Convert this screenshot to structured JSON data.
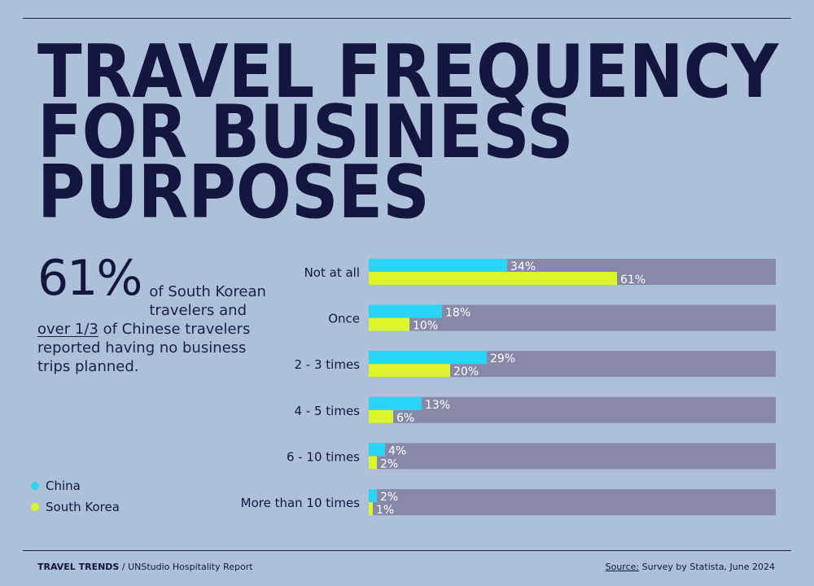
{
  "header": {
    "title": "TRAVEL FREQUENCY\nFOR BUSINESS\nPURPOSES"
  },
  "stat": {
    "big": "61%",
    "text_1": " of South Korean travelers and ",
    "underline_1": "over 1/3",
    "text_2": " of Chinese travelers reported having no business trips planned."
  },
  "footer": {
    "brand": "TRAVEL TRENDS",
    "sep": " / ",
    "report": "UNStudio Hospitality Report",
    "source_label": "Source:",
    "source_text": " Survey by Statista, June 2024"
  },
  "colors": {
    "china": "#2ad4f7",
    "south_korea": "#ddf62a",
    "track": "#8a88a8",
    "text": "#14163f"
  },
  "chart_data": {
    "type": "bar",
    "orientation": "horizontal",
    "categories": [
      "Not at all",
      "Once",
      "2 - 3 times",
      "4 - 5 times",
      "6 - 10 times",
      "More than 10 times"
    ],
    "series": [
      {
        "name": "China",
        "values": [
          34,
          18,
          29,
          13,
          4,
          2
        ],
        "labels": [
          "34%",
          "18%",
          "29%",
          "13%",
          "4%",
          "2%"
        ]
      },
      {
        "name": "South Korea",
        "values": [
          61,
          10,
          20,
          6,
          2,
          1
        ],
        "labels": [
          "61%",
          "10%",
          "20%",
          "6%",
          "2%",
          "1%"
        ]
      }
    ],
    "xlim": [
      0,
      100
    ],
    "legend": "bottom-left",
    "grid": false
  }
}
